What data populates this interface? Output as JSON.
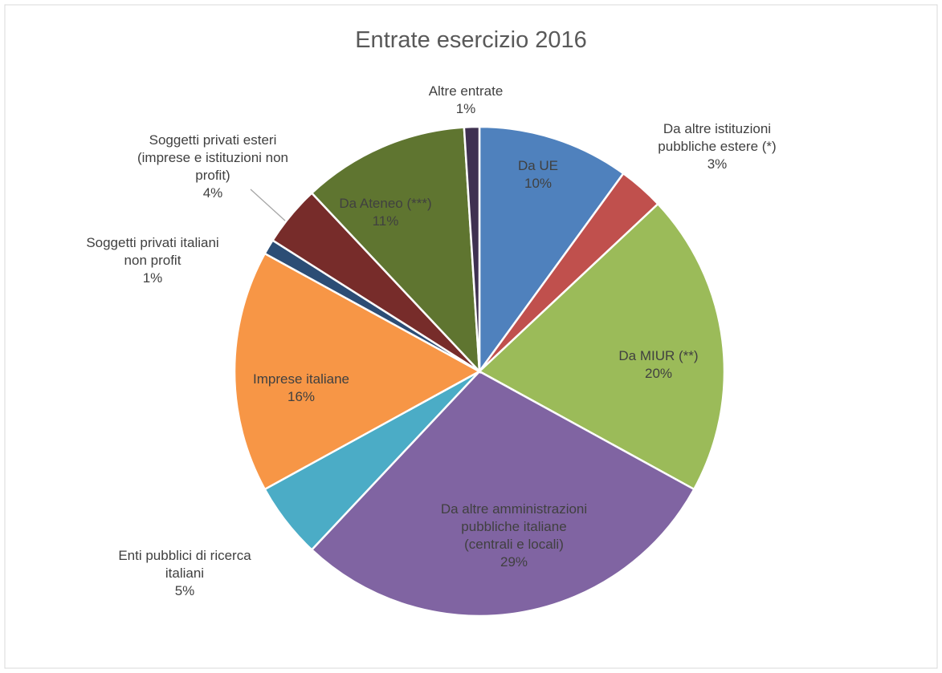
{
  "chart_data": {
    "type": "pie",
    "title": "Entrate esercizio 2016",
    "categories": [
      "Da UE",
      "Da altre istituzioni pubbliche estere (*)",
      "Da MIUR (**)",
      "Da altre amministrazioni pubbliche italiane (centrali e locali)",
      "Enti pubblici di ricerca italiani",
      "Imprese italiane",
      "Soggetti privati italiani non profit",
      "Soggetti privati esteri (imprese e istituzioni non profit)",
      "Da Ateneo (***)",
      "Altre entrate"
    ],
    "values": [
      10,
      3,
      20,
      29,
      5,
      16,
      1,
      4,
      11,
      1
    ],
    "value_labels": [
      "10%",
      "3%",
      "20%",
      "29%",
      "5%",
      "16%",
      "1%",
      "4%",
      "11%",
      "1%"
    ],
    "colors": [
      "#4f81bd",
      "#c0504d",
      "#9bbb59",
      "#8064a2",
      "#4bacc6",
      "#f79646",
      "#2c4d75",
      "#772c2a",
      "#5f7530",
      "#3f3151"
    ]
  }
}
